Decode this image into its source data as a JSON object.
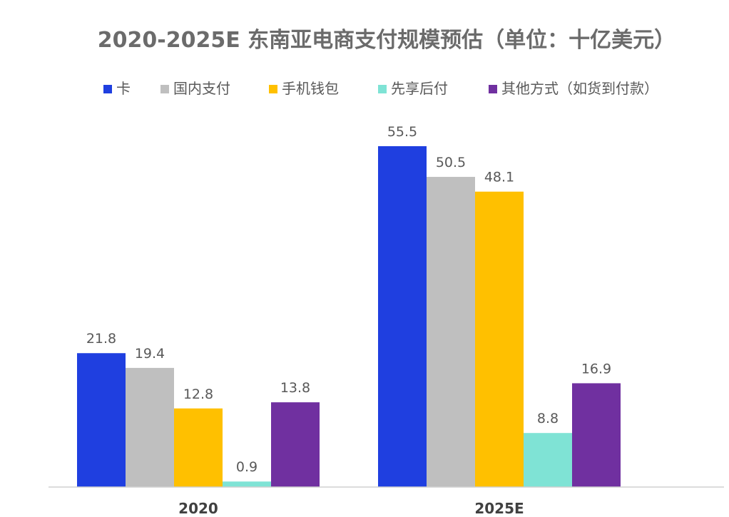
{
  "chart_data": {
    "type": "bar",
    "title": "2020-2025E 东南亚电商支付规模预估（单位：十亿美元）",
    "categories": [
      "2020",
      "2025E"
    ],
    "series": [
      {
        "name": "卡",
        "color": "#1f3fe0",
        "values": [
          21.8,
          55.5
        ],
        "labels": [
          "21.8",
          "55.5"
        ]
      },
      {
        "name": "国内支付",
        "color": "#bfbfbf",
        "values": [
          19.4,
          50.5
        ],
        "labels": [
          "19.4",
          "50.5"
        ]
      },
      {
        "name": "手机钱包",
        "color": "#ffc000",
        "values": [
          12.8,
          48.1
        ],
        "labels": [
          "12.8",
          "48.1"
        ]
      },
      {
        "name": "先享后付",
        "color": "#7fe3d5",
        "values": [
          0.9,
          8.8
        ],
        "labels": [
          "0.9",
          "8.8"
        ]
      },
      {
        "name": "其他方式（如货到付款）",
        "color": "#7030a0",
        "values": [
          13.8,
          16.9
        ],
        "labels": [
          "13.8",
          "16.9"
        ]
      }
    ],
    "xlabel": "",
    "ylabel": "",
    "ylim": [
      0,
      65
    ],
    "grid": false,
    "legend_position": "top"
  }
}
